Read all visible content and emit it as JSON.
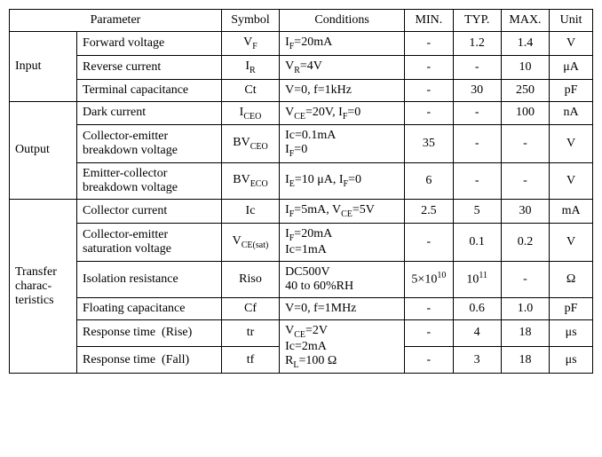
{
  "headers": {
    "parameter": "Parameter",
    "symbol": "Symbol",
    "conditions": "Conditions",
    "min": "MIN.",
    "typ": "TYP.",
    "max": "MAX.",
    "unit": "Unit"
  },
  "groups": {
    "input": "Input",
    "output": "Output",
    "transfer": "Transfer charac-teristics"
  },
  "rows": {
    "r1": {
      "param": "Forward voltage",
      "sym": "V<sub>F</sub>",
      "cond": "I<sub>F</sub>=20mA",
      "min": "-",
      "typ": "1.2",
      "max": "1.4",
      "unit": "V"
    },
    "r2": {
      "param": "Reverse current",
      "sym": "I<sub>R</sub>",
      "cond": "V<sub>R</sub>=4V",
      "min": "-",
      "typ": "-",
      "max": "10",
      "unit": "μA"
    },
    "r3": {
      "param": "Terminal capacitance",
      "sym": "Ct",
      "cond": "V=0, f=1kHz",
      "min": "-",
      "typ": "30",
      "max": "250",
      "unit": "pF"
    },
    "r4": {
      "param": "Dark current",
      "sym": "I<sub>CEO</sub>",
      "cond": "V<sub>CE</sub>=20V, I<sub>F</sub>=0",
      "min": "-",
      "typ": "-",
      "max": "100",
      "unit": "nA"
    },
    "r5": {
      "param": "Collector-emitter breakdown voltage",
      "sym": "BV<sub>CEO</sub>",
      "cond": "Ic=0.1mA<br>I<sub>F</sub>=0",
      "min": "35",
      "typ": "-",
      "max": "-",
      "unit": "V"
    },
    "r6": {
      "param": "Emitter-collector breakdown voltage",
      "sym": "BV<sub>ECO</sub>",
      "cond": "I<sub>E</sub>=10 μA, I<sub>F</sub>=0",
      "min": "6",
      "typ": "-",
      "max": "-",
      "unit": "V"
    },
    "r7": {
      "param": "Collector current",
      "sym": "Ic",
      "cond": "I<sub>F</sub>=5mA, V<sub>CE</sub>=5V",
      "min": "2.5",
      "typ": "5",
      "max": "30",
      "unit": "mA"
    },
    "r8": {
      "param": "Collector-emitter saturation voltage",
      "sym": "V<sub>CE(sat)</sub>",
      "cond": "I<sub>F</sub>=20mA<br>Ic=1mA",
      "min": "-",
      "typ": "0.1",
      "max": "0.2",
      "unit": "V"
    },
    "r9": {
      "param": "Isolation resistance",
      "sym": "Riso",
      "cond": "DC500V<br>40 to 60%RH",
      "min": "5×10<sup>10</sup>",
      "typ": "10<sup>11</sup>",
      "max": "-",
      "unit": "Ω"
    },
    "r10": {
      "param": "Floating capacitance",
      "sym": "Cf",
      "cond": "V=0, f=1MHz",
      "min": "-",
      "typ": "0.6",
      "max": "1.0",
      "unit": "pF"
    },
    "r11": {
      "param": "Response time&nbsp;&nbsp;(Rise)",
      "sym": "tr",
      "cond": "V<sub>CE</sub>=2V<br>Ic=2mA<br>R<sub>L</sub>=100 Ω",
      "min": "-",
      "typ": "4",
      "max": "18",
      "unit": "μs"
    },
    "r12": {
      "param": "Response time&nbsp;&nbsp;(Fall)",
      "sym": "tf",
      "min": "-",
      "typ": "3",
      "max": "18",
      "unit": "μs"
    }
  }
}
